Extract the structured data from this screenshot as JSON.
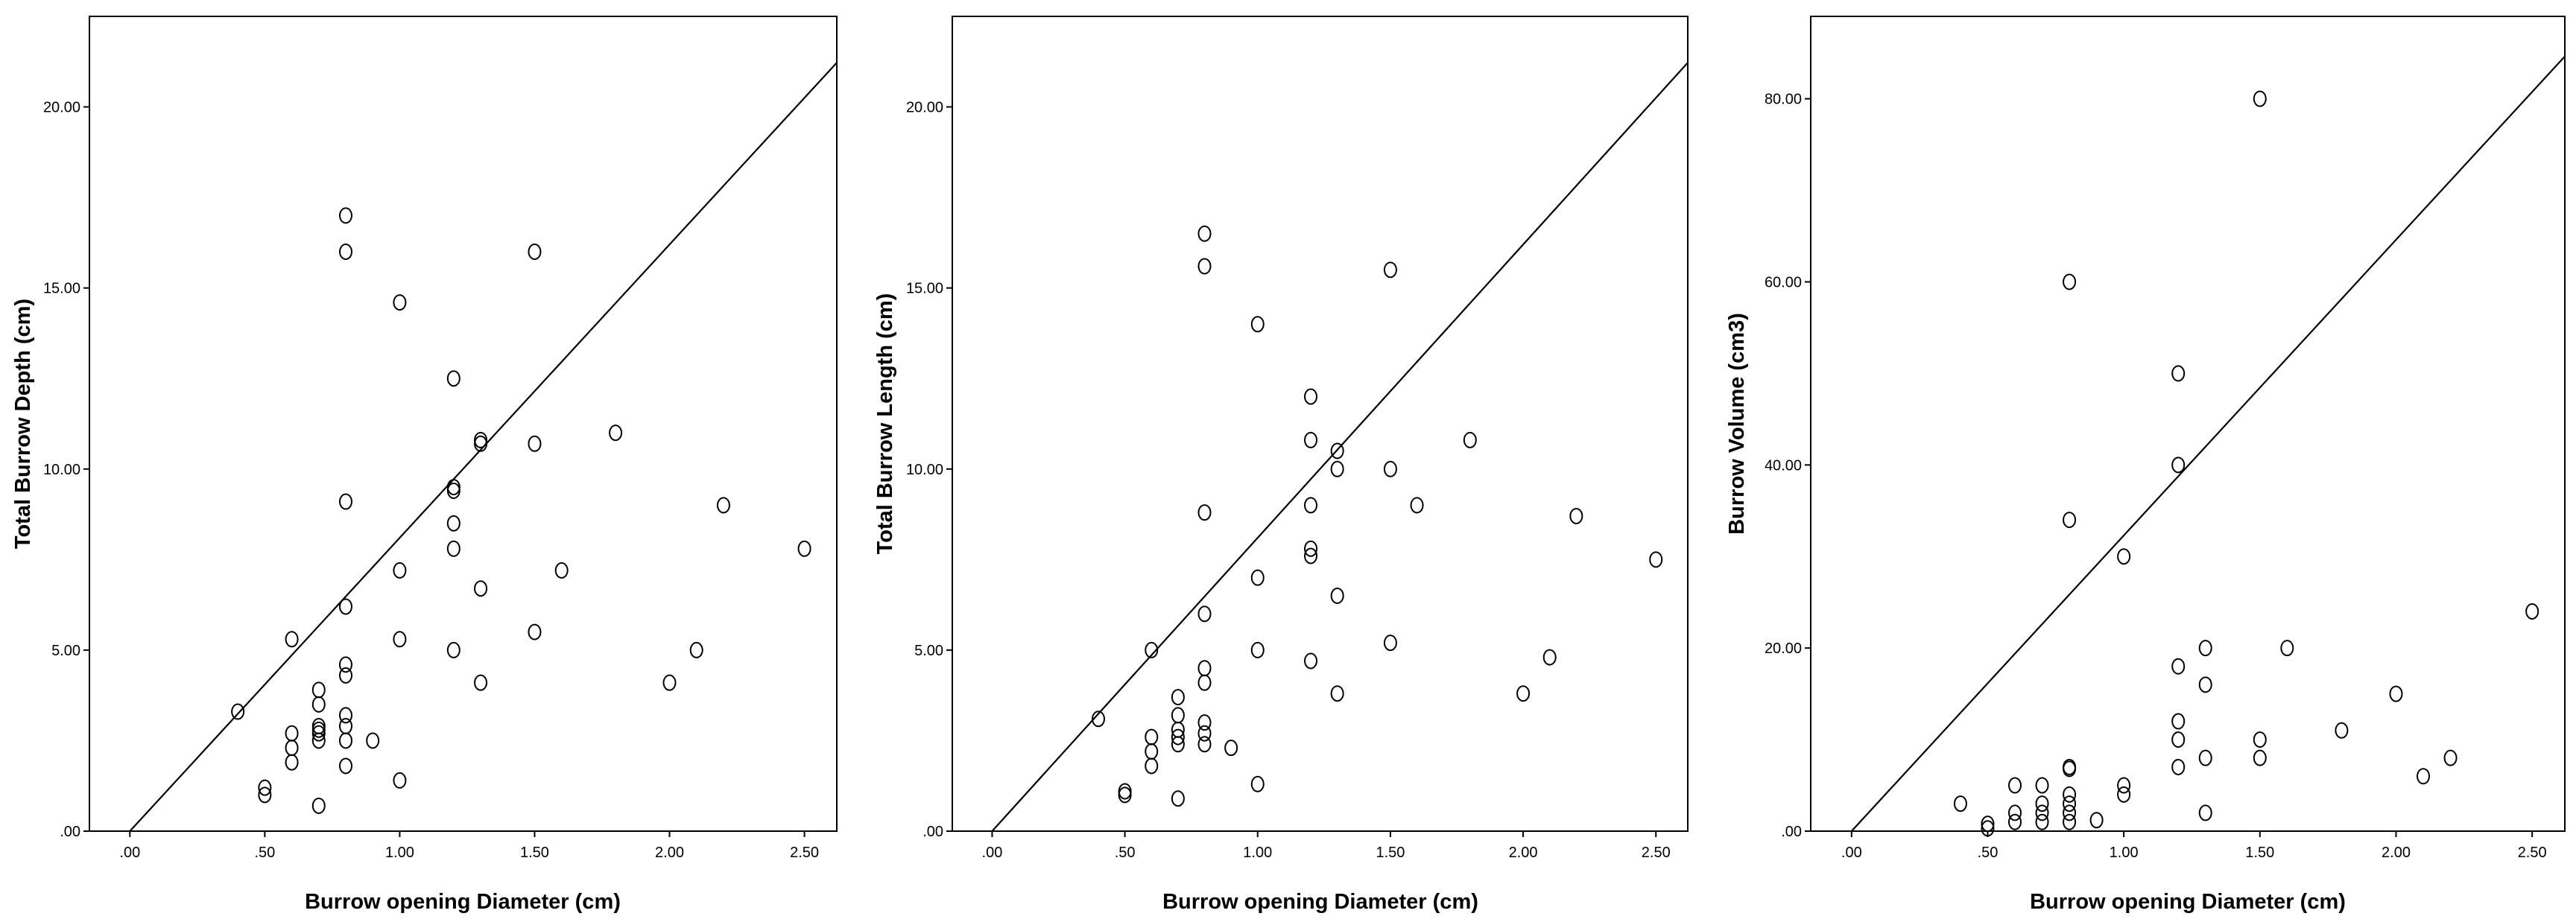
{
  "chart_data": [
    {
      "type": "scatter",
      "xlabel": "Burrow opening Diameter (cm)",
      "ylabel": "Total Burrow Depth (cm)",
      "xlim": [
        -0.15,
        2.62
      ],
      "ylim": [
        0,
        22.5
      ],
      "xticks": [
        0,
        0.5,
        1,
        1.5,
        2,
        2.5
      ],
      "xtick_labels": [
        ".00",
        ".50",
        "1.00",
        "1.50",
        "2.00",
        "2.50"
      ],
      "yticks": [
        0,
        5,
        10,
        15,
        20
      ],
      "ytick_labels": [
        ".00",
        "5.00",
        "10.00",
        "15.00",
        "20.00"
      ],
      "fit_line": {
        "intercept": 0,
        "slope": 8.1
      },
      "points": [
        {
          "x": 0.4,
          "y": 3.3
        },
        {
          "x": 0.5,
          "y": 1.2
        },
        {
          "x": 0.5,
          "y": 1.0
        },
        {
          "x": 0.6,
          "y": 5.3
        },
        {
          "x": 0.6,
          "y": 2.7
        },
        {
          "x": 0.6,
          "y": 2.3
        },
        {
          "x": 0.6,
          "y": 1.9
        },
        {
          "x": 0.7,
          "y": 3.9
        },
        {
          "x": 0.7,
          "y": 3.5
        },
        {
          "x": 0.7,
          "y": 2.9
        },
        {
          "x": 0.7,
          "y": 2.8
        },
        {
          "x": 0.7,
          "y": 2.7
        },
        {
          "x": 0.7,
          "y": 2.5
        },
        {
          "x": 0.7,
          "y": 0.7
        },
        {
          "x": 0.8,
          "y": 17.0
        },
        {
          "x": 0.8,
          "y": 16.0
        },
        {
          "x": 0.8,
          "y": 9.1
        },
        {
          "x": 0.8,
          "y": 6.2
        },
        {
          "x": 0.8,
          "y": 4.6
        },
        {
          "x": 0.8,
          "y": 4.3
        },
        {
          "x": 0.8,
          "y": 3.2
        },
        {
          "x": 0.8,
          "y": 2.9
        },
        {
          "x": 0.8,
          "y": 2.5
        },
        {
          "x": 0.8,
          "y": 1.8
        },
        {
          "x": 0.9,
          "y": 2.5
        },
        {
          "x": 1.0,
          "y": 14.6
        },
        {
          "x": 1.0,
          "y": 7.2
        },
        {
          "x": 1.0,
          "y": 5.3
        },
        {
          "x": 1.0,
          "y": 1.4
        },
        {
          "x": 1.2,
          "y": 12.5
        },
        {
          "x": 1.2,
          "y": 9.5
        },
        {
          "x": 1.2,
          "y": 9.4
        },
        {
          "x": 1.2,
          "y": 8.5
        },
        {
          "x": 1.2,
          "y": 7.8
        },
        {
          "x": 1.2,
          "y": 5.0
        },
        {
          "x": 1.3,
          "y": 10.8
        },
        {
          "x": 1.3,
          "y": 10.7
        },
        {
          "x": 1.3,
          "y": 6.7
        },
        {
          "x": 1.3,
          "y": 4.1
        },
        {
          "x": 1.5,
          "y": 16.0
        },
        {
          "x": 1.5,
          "y": 10.7
        },
        {
          "x": 1.5,
          "y": 5.5
        },
        {
          "x": 1.6,
          "y": 7.2
        },
        {
          "x": 1.8,
          "y": 11.0
        },
        {
          "x": 2.0,
          "y": 4.1
        },
        {
          "x": 2.1,
          "y": 5.0
        },
        {
          "x": 2.2,
          "y": 9.0
        },
        {
          "x": 2.5,
          "y": 7.8
        }
      ]
    },
    {
      "type": "scatter",
      "xlabel": "Burrow opening Diameter (cm)",
      "ylabel": "Total Burrow Length (cm)",
      "xlim": [
        -0.15,
        2.62
      ],
      "ylim": [
        0,
        22.5
      ],
      "xticks": [
        0,
        0.5,
        1,
        1.5,
        2,
        2.5
      ],
      "xtick_labels": [
        ".00",
        ".50",
        "1.00",
        "1.50",
        "2.00",
        "2.50"
      ],
      "yticks": [
        0,
        5,
        10,
        15,
        20
      ],
      "ytick_labels": [
        ".00",
        "5.00",
        "10.00",
        "15.00",
        "20.00"
      ],
      "fit_line": {
        "intercept": 0,
        "slope": 8.1
      },
      "points": [
        {
          "x": 0.4,
          "y": 3.1
        },
        {
          "x": 0.5,
          "y": 1.1
        },
        {
          "x": 0.5,
          "y": 1.0
        },
        {
          "x": 0.6,
          "y": 5.0
        },
        {
          "x": 0.6,
          "y": 2.6
        },
        {
          "x": 0.6,
          "y": 2.2
        },
        {
          "x": 0.6,
          "y": 1.8
        },
        {
          "x": 0.7,
          "y": 3.7
        },
        {
          "x": 0.7,
          "y": 3.2
        },
        {
          "x": 0.7,
          "y": 2.8
        },
        {
          "x": 0.7,
          "y": 2.6
        },
        {
          "x": 0.7,
          "y": 2.4
        },
        {
          "x": 0.7,
          "y": 0.9
        },
        {
          "x": 0.8,
          "y": 16.5
        },
        {
          "x": 0.8,
          "y": 15.6
        },
        {
          "x": 0.8,
          "y": 8.8
        },
        {
          "x": 0.8,
          "y": 6.0
        },
        {
          "x": 0.8,
          "y": 4.5
        },
        {
          "x": 0.8,
          "y": 4.1
        },
        {
          "x": 0.8,
          "y": 3.0
        },
        {
          "x": 0.8,
          "y": 2.7
        },
        {
          "x": 0.8,
          "y": 2.4
        },
        {
          "x": 0.9,
          "y": 2.3
        },
        {
          "x": 1.0,
          "y": 14.0
        },
        {
          "x": 1.0,
          "y": 7.0
        },
        {
          "x": 1.0,
          "y": 5.0
        },
        {
          "x": 1.0,
          "y": 1.3
        },
        {
          "x": 1.2,
          "y": 12.0
        },
        {
          "x": 1.2,
          "y": 10.8
        },
        {
          "x": 1.2,
          "y": 9.0
        },
        {
          "x": 1.2,
          "y": 7.8
        },
        {
          "x": 1.2,
          "y": 7.6
        },
        {
          "x": 1.2,
          "y": 4.7
        },
        {
          "x": 1.3,
          "y": 10.5
        },
        {
          "x": 1.3,
          "y": 10.0
        },
        {
          "x": 1.3,
          "y": 6.5
        },
        {
          "x": 1.3,
          "y": 3.8
        },
        {
          "x": 1.5,
          "y": 15.5
        },
        {
          "x": 1.5,
          "y": 10.0
        },
        {
          "x": 1.5,
          "y": 5.2
        },
        {
          "x": 1.6,
          "y": 9.0
        },
        {
          "x": 1.8,
          "y": 10.8
        },
        {
          "x": 2.0,
          "y": 3.8
        },
        {
          "x": 2.1,
          "y": 4.8
        },
        {
          "x": 2.2,
          "y": 8.7
        },
        {
          "x": 2.5,
          "y": 7.5
        }
      ]
    },
    {
      "type": "scatter",
      "xlabel": "Burrow opening Diameter (cm)",
      "ylabel": "Burrow Volume (cm3)",
      "xlim": [
        -0.15,
        2.62
      ],
      "ylim": [
        0,
        89
      ],
      "xticks": [
        0,
        0.5,
        1,
        1.5,
        2,
        2.5
      ],
      "xtick_labels": [
        ".00",
        ".50",
        "1.00",
        "1.50",
        "2.00",
        "2.50"
      ],
      "yticks": [
        0,
        20,
        40,
        60,
        80
      ],
      "ytick_labels": [
        ".00",
        "20.00",
        "40.00",
        "60.00",
        "80.00"
      ],
      "fit_line": {
        "intercept": 0,
        "slope": 32.3
      },
      "points": [
        {
          "x": 0.4,
          "y": 3.0
        },
        {
          "x": 0.5,
          "y": 0.8
        },
        {
          "x": 0.5,
          "y": 0.3
        },
        {
          "x": 0.6,
          "y": 5.0
        },
        {
          "x": 0.6,
          "y": 2.0
        },
        {
          "x": 0.6,
          "y": 1.0
        },
        {
          "x": 0.7,
          "y": 5.0
        },
        {
          "x": 0.7,
          "y": 3.0
        },
        {
          "x": 0.7,
          "y": 2.0
        },
        {
          "x": 0.7,
          "y": 1.0
        },
        {
          "x": 0.8,
          "y": 60.0
        },
        {
          "x": 0.8,
          "y": 34.0
        },
        {
          "x": 0.8,
          "y": 7.0
        },
        {
          "x": 0.8,
          "y": 6.8
        },
        {
          "x": 0.8,
          "y": 4.0
        },
        {
          "x": 0.8,
          "y": 3.0
        },
        {
          "x": 0.8,
          "y": 2.0
        },
        {
          "x": 0.8,
          "y": 1.0
        },
        {
          "x": 0.9,
          "y": 1.2
        },
        {
          "x": 1.0,
          "y": 30.0
        },
        {
          "x": 1.0,
          "y": 5.0
        },
        {
          "x": 1.0,
          "y": 4.0
        },
        {
          "x": 1.2,
          "y": 50.0
        },
        {
          "x": 1.2,
          "y": 40.0
        },
        {
          "x": 1.2,
          "y": 18.0
        },
        {
          "x": 1.2,
          "y": 12.0
        },
        {
          "x": 1.2,
          "y": 10.0
        },
        {
          "x": 1.2,
          "y": 7.0
        },
        {
          "x": 1.3,
          "y": 20.0
        },
        {
          "x": 1.3,
          "y": 16.0
        },
        {
          "x": 1.3,
          "y": 8.0
        },
        {
          "x": 1.3,
          "y": 2.0
        },
        {
          "x": 1.5,
          "y": 80.0
        },
        {
          "x": 1.5,
          "y": 10.0
        },
        {
          "x": 1.5,
          "y": 8.0
        },
        {
          "x": 1.6,
          "y": 20.0
        },
        {
          "x": 1.8,
          "y": 11.0
        },
        {
          "x": 2.0,
          "y": 15.0
        },
        {
          "x": 2.1,
          "y": 6.0
        },
        {
          "x": 2.2,
          "y": 8.0
        },
        {
          "x": 2.5,
          "y": 24.0
        }
      ]
    }
  ]
}
